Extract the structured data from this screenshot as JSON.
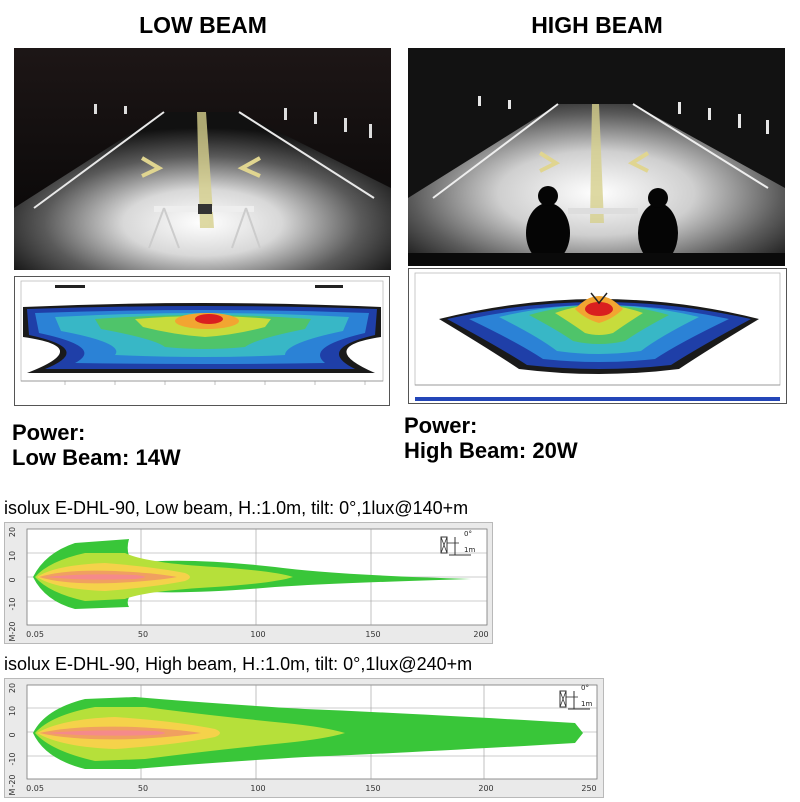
{
  "panels": [
    {
      "title": "LOW BEAM",
      "power_label": "Power:",
      "power_value": "Low Beam: 14W"
    },
    {
      "title": "HIGH BEAM",
      "power_label": "Power:",
      "power_value": "High Beam: 20W"
    }
  ],
  "isolux": [
    {
      "title": "isolux E-DHL-90, Low beam, H.:1.0m, tilt: 0°,1lux@140+m",
      "x_ticks": [
        "0.05",
        "50",
        "100",
        "150",
        "200"
      ],
      "y_ticks": [
        "20",
        "10",
        "0",
        "-10",
        "-20"
      ],
      "y_unit": "M",
      "icon_angle": "0°",
      "icon_height": "1m"
    },
    {
      "title": "isolux E-DHL-90, High beam, H.:1.0m, tilt: 0°,1lux@240+m",
      "x_ticks": [
        "0.05",
        "50",
        "100",
        "150",
        "200",
        "250"
      ],
      "y_ticks": [
        "20",
        "10",
        "0",
        "-10",
        "-20"
      ],
      "y_unit": "M",
      "icon_angle": "0°",
      "icon_height": "1m"
    }
  ],
  "colors": {
    "contour_outer": "#39c639",
    "contour_mid": "#b6e03a",
    "contour_inner": "#f5d24a",
    "contour_core": "#f0a060",
    "contour_hot": "#f58a8a"
  }
}
